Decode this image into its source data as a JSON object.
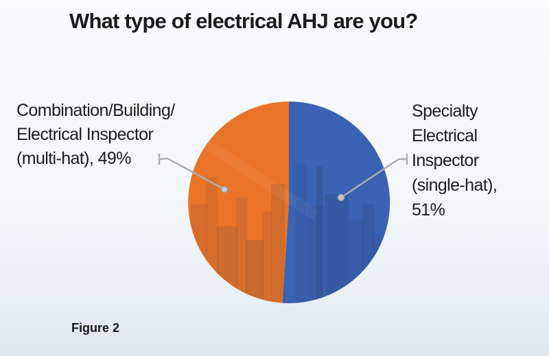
{
  "title": "What type of electrical AHJ are you?",
  "figure_label": "Figure 2",
  "chart_data": {
    "type": "pie",
    "title": "What type of electrical AHJ are you?",
    "labels": [
      "Combination/Building/Electrical Inspector (multi-hat)",
      "Specialty Electrical Inspector (single-hat)"
    ],
    "values": [
      49,
      51
    ],
    "unit": "%",
    "colors": [
      "#E97428",
      "#3B63B3"
    ],
    "start_angle": "12 o'clock",
    "first_slice_direction": "counterclockwise (orange to the left, blue to the right)",
    "legend_position": "side callouts with leader lines",
    "background_texture": "faint city skyline photo overlay inside pie"
  },
  "callouts": {
    "left": {
      "text": "Combination/Building/\nElectrical Inspector\n(multi-hat), 49%"
    },
    "right": {
      "text": "Specialty\nElectrical\nInspector\n(single-hat),\n51%"
    }
  },
  "styles": {
    "text_color": "#1B1B1D",
    "background_top": "#F9FBFC",
    "background_bottom": "#DCE7EE",
    "leader_line_color": "#A9AEB3",
    "leader_dot_fill": "#C8CDD2",
    "leader_dot_stroke": "#9BA1A8"
  }
}
